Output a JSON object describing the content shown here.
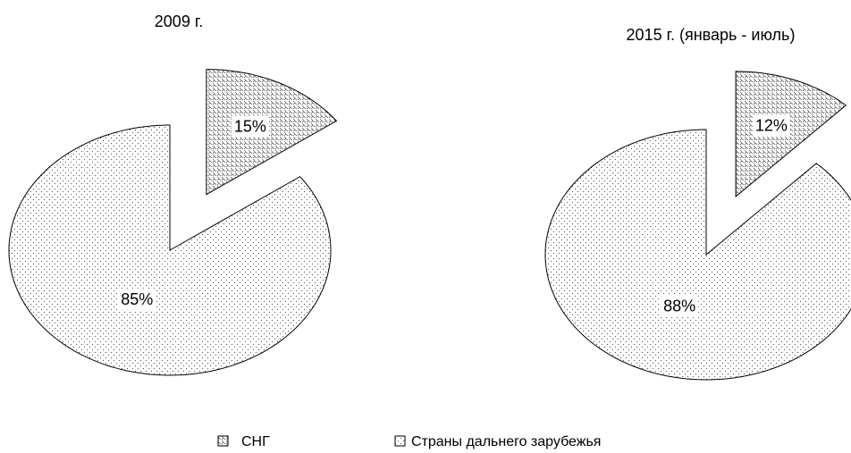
{
  "chart_data": [
    {
      "type": "pie",
      "title": "2009 г.",
      "values": [
        15,
        85
      ],
      "value_labels": [
        "15%",
        "85%"
      ]
    },
    {
      "type": "pie",
      "title": "2015 г. (январь - июль)",
      "values": [
        12,
        88
      ],
      "value_labels": [
        "12%",
        "88%"
      ]
    }
  ],
  "legend": {
    "labels": [
      "СНГ",
      "Страны дальнего зарубежья"
    ]
  }
}
